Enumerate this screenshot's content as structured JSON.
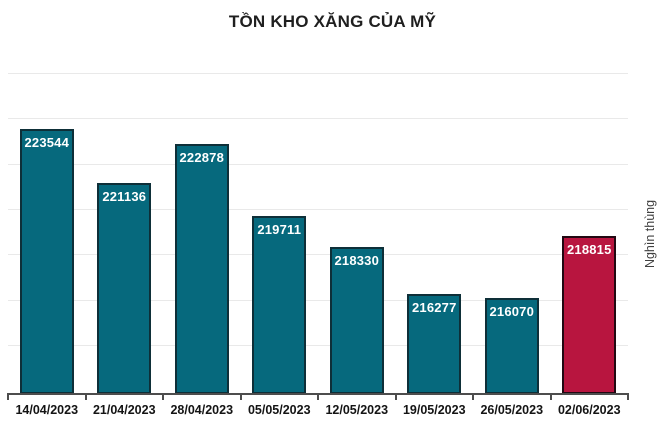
{
  "chart": {
    "title": "TỒN KHO XĂNG CỦA MỸ",
    "ylabel": "Nghìn thùng"
  },
  "chart_data": {
    "type": "bar",
    "title": "TỒN KHO XĂNG CỦA MỸ",
    "categories": [
      "14/04/2023",
      "21/04/2023",
      "28/04/2023",
      "05/05/2023",
      "12/05/2023",
      "19/05/2023",
      "26/05/2023",
      "02/06/2023"
    ],
    "values": [
      223544,
      221136,
      222878,
      219711,
      218330,
      216277,
      216070,
      218815
    ],
    "value_labels": [
      "223544",
      "221136",
      "222878",
      "219711",
      "218330",
      "216277",
      "216070",
      "218815"
    ],
    "xlabel": "",
    "ylabel": "Nghìn thùng",
    "ylim": [
      211850,
      226000
    ],
    "grid": true,
    "grid_values": [
      214000,
      216000,
      218000,
      220000,
      222000,
      224000,
      226000
    ],
    "legend": "none",
    "highlight_index": 7,
    "colors": {
      "bar_fill": "#06697d",
      "bar_border": "#0e2f38",
      "highlight_fill": "#b8153f",
      "highlight_border": "#220812",
      "gridline": "#e9e9e9",
      "axis": "#4d4d4d",
      "title_text": "#1f1f1f",
      "value_text": "#ffffff",
      "xtick_text": "#141414",
      "ylabel_text": "#404040"
    }
  }
}
